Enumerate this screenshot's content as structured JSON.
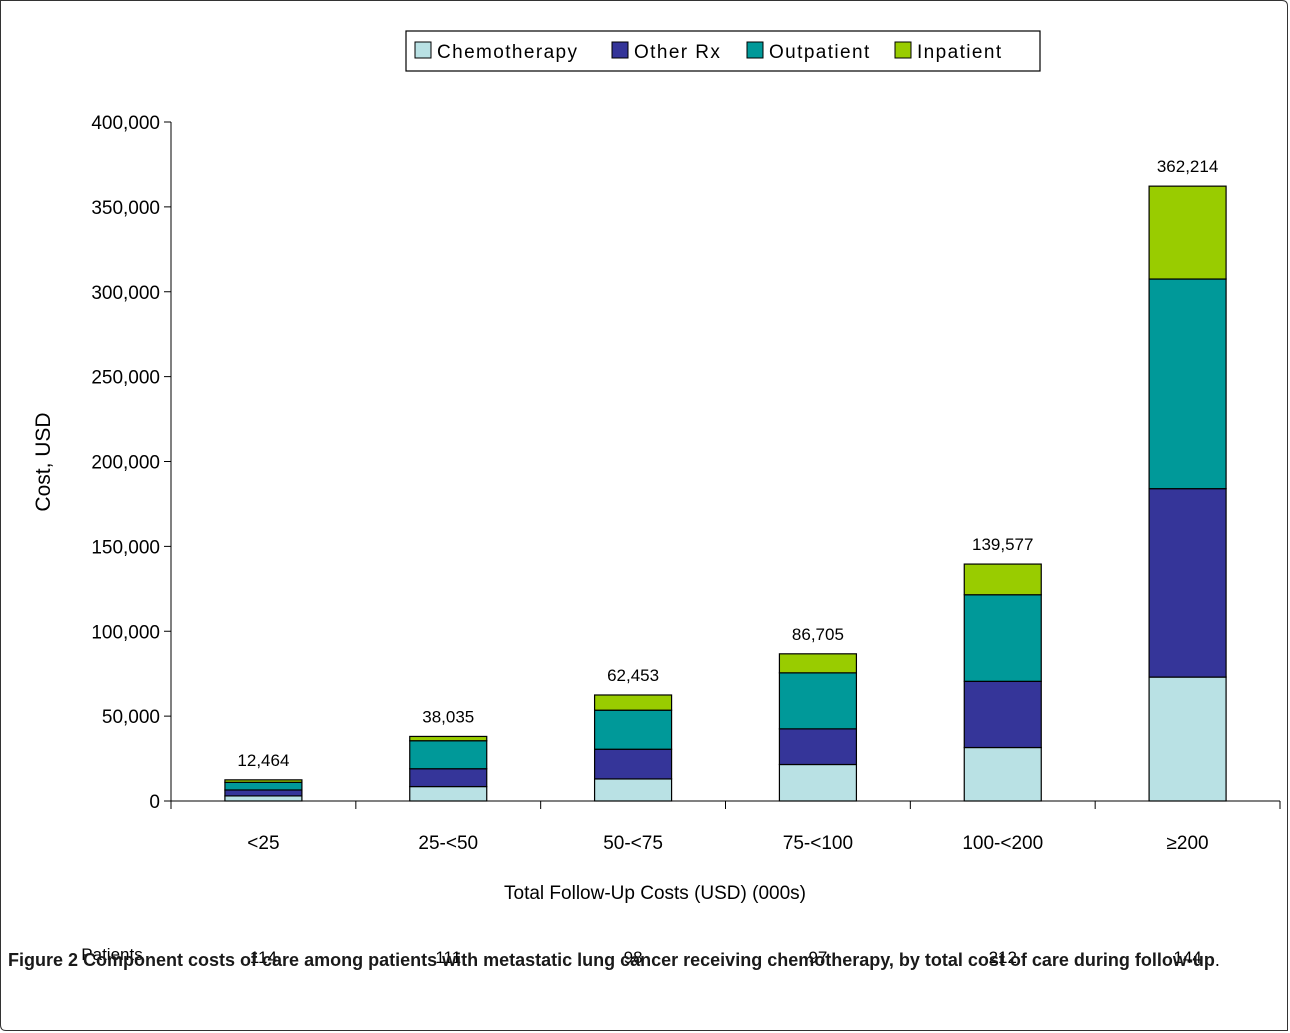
{
  "caption": {
    "label": "Figure 2",
    "title": "Component costs of care among patients with metastatic lung cancer receiving chemotherapy, by total cost of care during follow-up",
    "end": "."
  },
  "chart_data": {
    "type": "bar",
    "stacked": true,
    "title": "",
    "xlabel": "Total Follow-Up Costs (USD) (000s)",
    "ylabel": "Cost, USD",
    "ylim": [
      0,
      400000
    ],
    "yticks": [
      0,
      50000,
      100000,
      150000,
      200000,
      250000,
      300000,
      350000,
      400000
    ],
    "ytick_labels": [
      "0",
      "50,000",
      "100,000",
      "150,000",
      "200,000",
      "250,000",
      "300,000",
      "350,000",
      "400,000"
    ],
    "categories": [
      "<25",
      "25-<50",
      "50-<75",
      "75-<100",
      "100-<200",
      "≥200"
    ],
    "series": [
      {
        "name": "Chemotherapy",
        "color": "#b9e1e4",
        "values": [
          3000,
          8500,
          13000,
          21500,
          31500,
          73000
        ]
      },
      {
        "name": "Other Rx",
        "color": "#353599",
        "values": [
          3500,
          10500,
          17500,
          21000,
          39000,
          111000
        ]
      },
      {
        "name": "Outpatient",
        "color": "#009999",
        "values": [
          4500,
          16500,
          23000,
          33000,
          51000,
          123500
        ]
      },
      {
        "name": "Inpatient",
        "color": "#99cc00",
        "values": [
          1464,
          2535,
          8953,
          11205,
          18077,
          54714
        ]
      }
    ],
    "totals": [
      12464,
      38035,
      62453,
      86705,
      139577,
      362214
    ],
    "total_labels": [
      "12,464",
      "38,035",
      "62,453",
      "86,705",
      "139,577",
      "362,214"
    ],
    "patients_label": "Patients",
    "patients": [
      "114",
      "111",
      "98",
      "97",
      "212",
      "144"
    ],
    "legend_position": "top-center",
    "grid": false
  }
}
